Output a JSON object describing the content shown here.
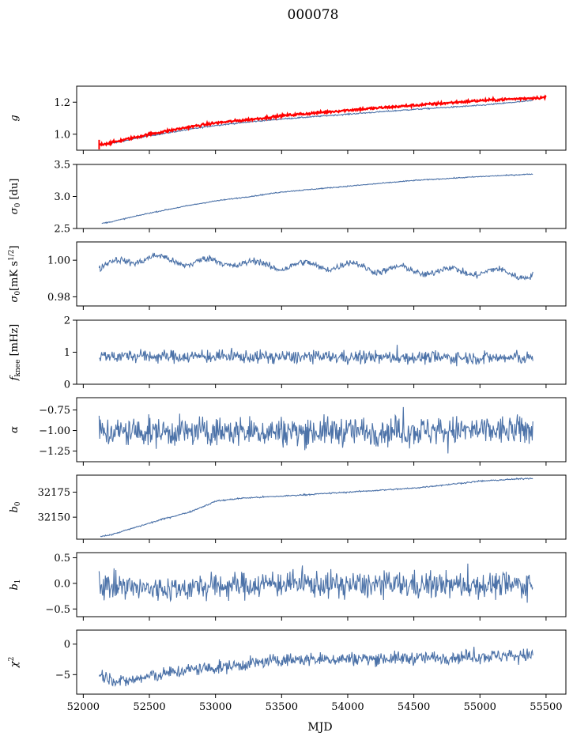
{
  "title": "000078",
  "x_axis": {
    "label": "MJD",
    "range": [
      51950,
      55650
    ],
    "ticks": [
      52000,
      52500,
      53000,
      53500,
      54000,
      54500,
      55000,
      55500
    ],
    "tick_labels": [
      "52000",
      "52500",
      "53000",
      "53500",
      "54000",
      "54500",
      "55000",
      "55500"
    ]
  },
  "chart_data": [
    {
      "type": "line",
      "id": "g",
      "ylabel": "g",
      "ylim": [
        0.9,
        1.3
      ],
      "yticks": [
        1.0,
        1.2
      ],
      "ytick_labels": [
        "1.0",
        "1.2"
      ],
      "series": [
        {
          "role": "model",
          "color": "#4c72a8",
          "x_range": [
            52120,
            55400
          ],
          "anchors_x": [
            52120,
            52200,
            52500,
            52800,
            53000,
            53300,
            53500,
            54000,
            54500,
            55000,
            55400
          ],
          "anchors_y": [
            0.935,
            0.94,
            0.99,
            1.03,
            1.055,
            1.08,
            1.095,
            1.125,
            1.155,
            1.18,
            1.21
          ],
          "noise": 0.002
        },
        {
          "role": "data",
          "color": "#ff0000",
          "x_range": [
            52120,
            55500
          ],
          "anchors_x": [
            52120,
            52200,
            52500,
            52800,
            53000,
            53300,
            53500,
            54000,
            54500,
            55000,
            55500
          ],
          "anchors_y": [
            0.935,
            0.945,
            1.0,
            1.045,
            1.07,
            1.095,
            1.115,
            1.15,
            1.18,
            1.21,
            1.23
          ],
          "noise": 0.004
        }
      ]
    },
    {
      "type": "line",
      "id": "sigma0-du",
      "ylabel": "σ0 [du]",
      "ylim": [
        2.5,
        3.5
      ],
      "yticks": [
        2.5,
        3.0,
        3.5
      ],
      "ytick_labels": [
        "2.5",
        "3.0",
        "3.5"
      ],
      "series": [
        {
          "color": "#4c72a8",
          "x_range": [
            52140,
            55400
          ],
          "anchors_x": [
            52140,
            52200,
            52500,
            52800,
            53000,
            53300,
            53500,
            54000,
            54500,
            55000,
            55400
          ],
          "anchors_y": [
            2.58,
            2.6,
            2.74,
            2.86,
            2.93,
            3.01,
            3.07,
            3.16,
            3.25,
            3.31,
            3.35
          ],
          "noise": 0.004
        }
      ]
    },
    {
      "type": "line",
      "id": "sigma0-mk",
      "ylabel": "σ0[mK s^1/2]",
      "ylim": [
        0.975,
        1.01
      ],
      "yticks": [
        0.98,
        1.0
      ],
      "ytick_labels": [
        "0.98",
        "1.00"
      ],
      "series": [
        {
          "color": "#4c72a8",
          "x_range": [
            52120,
            55400
          ],
          "anchors_x": [
            52120,
            52300,
            52500,
            52800,
            53100,
            53400,
            53700,
            54000,
            54300,
            54600,
            54900,
            55200,
            55400
          ],
          "anchors_y": [
            0.995,
            1.0,
            1.001,
            0.999,
            0.999,
            0.997,
            0.997,
            0.997,
            0.995,
            0.994,
            0.994,
            0.993,
            0.992
          ],
          "wave_amp": 0.002,
          "wave_period": 365,
          "noise": 0.0009
        }
      ]
    },
    {
      "type": "line",
      "id": "fknee",
      "ylabel": "f_knee [mHz]",
      "ylim": [
        0,
        2
      ],
      "yticks": [
        0,
        1,
        2
      ],
      "ytick_labels": [
        "0",
        "1",
        "2"
      ],
      "series": [
        {
          "color": "#4c72a8",
          "x_range": [
            52120,
            55400
          ],
          "anchors_x": [
            52120,
            55400
          ],
          "anchors_y": [
            0.88,
            0.82
          ],
          "noise": 0.1,
          "spikes": 0.45
        }
      ]
    },
    {
      "type": "line",
      "id": "alpha",
      "ylabel": "α",
      "ylim": [
        -1.38,
        -0.6
      ],
      "yticks": [
        -1.25,
        -1.0,
        -0.75
      ],
      "ytick_labels": [
        "−1.25",
        "−1.00",
        "−0.75"
      ],
      "series": [
        {
          "color": "#4c72a8",
          "x_range": [
            52120,
            55400
          ],
          "anchors_x": [
            52120,
            55400
          ],
          "anchors_y": [
            -1.02,
            -1.0
          ],
          "noise": 0.09,
          "spikes": 0.3
        }
      ]
    },
    {
      "type": "line",
      "id": "b0",
      "ylabel": "b0",
      "ylim": [
        32128,
        32192
      ],
      "yticks": [
        32150,
        32175
      ],
      "ytick_labels": [
        "32150",
        "32175"
      ],
      "series": [
        {
          "color": "#4c72a8",
          "x_range": [
            52130,
            55400
          ],
          "anchors_x": [
            52130,
            52200,
            52400,
            52600,
            52800,
            52950,
            53000,
            53200,
            53500,
            54000,
            54500,
            55000,
            55400
          ],
          "anchors_y": [
            32131,
            32132,
            32140,
            32148,
            32155,
            32163,
            32166,
            32169,
            32171,
            32175,
            32179,
            32186,
            32189
          ],
          "noise": 0.35
        }
      ]
    },
    {
      "type": "line",
      "id": "b1",
      "ylabel": "b1",
      "ylim": [
        -0.65,
        0.6
      ],
      "yticks": [
        -0.5,
        0.0,
        0.5
      ],
      "ytick_labels": [
        "−0.5",
        "0.0",
        "0.5"
      ],
      "series": [
        {
          "color": "#4c72a8",
          "x_range": [
            52120,
            55400
          ],
          "anchors_x": [
            52120,
            52500,
            53000,
            53500,
            54000,
            55400
          ],
          "anchors_y": [
            -0.02,
            -0.12,
            -0.06,
            0.0,
            -0.03,
            -0.03
          ],
          "noise": 0.13,
          "spikes": 0.4
        }
      ]
    },
    {
      "type": "line",
      "id": "chi2",
      "ylabel": "χ²",
      "ylim": [
        -8.2,
        2.3
      ],
      "yticks": [
        -5,
        0
      ],
      "ytick_labels": [
        "−5",
        "0"
      ],
      "series": [
        {
          "color": "#4c72a8",
          "x_range": [
            52120,
            55400
          ],
          "anchors_x": [
            52120,
            52300,
            52500,
            52800,
            53000,
            53300,
            53500,
            54000,
            54500,
            55000,
            55400
          ],
          "anchors_y": [
            -5.0,
            -6.2,
            -5.3,
            -4.2,
            -3.9,
            -3.1,
            -2.6,
            -2.4,
            -2.3,
            -2.0,
            -1.8
          ],
          "noise": 0.55,
          "spikes": 1.5
        }
      ]
    }
  ]
}
